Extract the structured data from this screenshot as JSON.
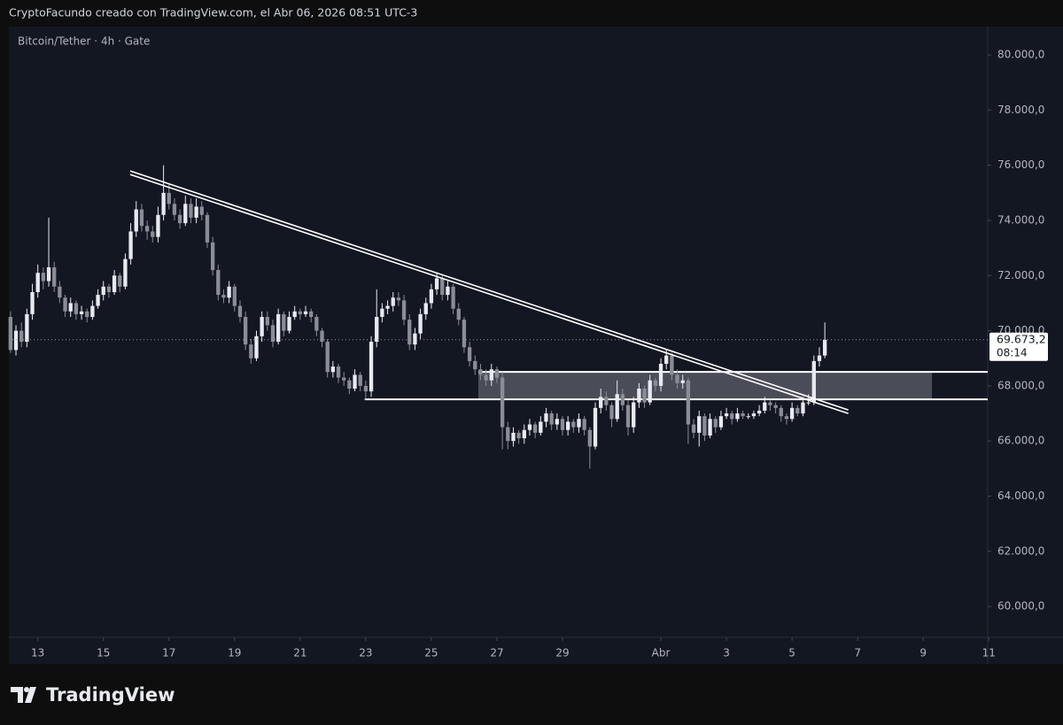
{
  "header": "CryptoFacundo creado con TradingView.com, el Abr 06, 2026 08:51 UTC-3",
  "brand": "TradingView",
  "chart_data": {
    "type": "candlestick",
    "title": "Bitcoin/Tether · 4h · Gate",
    "up_color": "#e8eaf0",
    "down_color": "#8a8d96",
    "xlim": [
      -0.3,
      178.8
    ],
    "ylim": [
      58880,
      81030
    ],
    "xticks": [
      {
        "value": 5,
        "label": "13"
      },
      {
        "value": 17,
        "label": "15"
      },
      {
        "value": 29,
        "label": "17"
      },
      {
        "value": 41,
        "label": "19"
      },
      {
        "value": 53,
        "label": "21"
      },
      {
        "value": 65,
        "label": "23"
      },
      {
        "value": 77,
        "label": "25"
      },
      {
        "value": 89,
        "label": "27"
      },
      {
        "value": 101,
        "label": "29"
      },
      {
        "value": 119,
        "label": "Abr"
      },
      {
        "value": 131,
        "label": "3"
      },
      {
        "value": 143,
        "label": "5"
      },
      {
        "value": 155,
        "label": "7"
      },
      {
        "value": 167,
        "label": "9"
      },
      {
        "value": 179,
        "label": "11"
      }
    ],
    "yticks": [
      {
        "value": 60000,
        "label": "60.000,0"
      },
      {
        "value": 62000,
        "label": "62.000,0"
      },
      {
        "value": 64000,
        "label": "64.000,0"
      },
      {
        "value": 66000,
        "label": "66.000,0"
      },
      {
        "value": 68000,
        "label": "68.000,0"
      },
      {
        "value": 70000,
        "label": "70.000,0"
      },
      {
        "value": 72000,
        "label": "72.000,0"
      },
      {
        "value": 74000,
        "label": "74.000,0"
      },
      {
        "value": 76000,
        "label": "76.000,0"
      },
      {
        "value": 78000,
        "label": "78.000,0"
      },
      {
        "value": 80000,
        "label": "80.000,0"
      }
    ],
    "last_price": {
      "value": 69673.2,
      "label": "69.673,2"
    },
    "countdown": "08:14",
    "trendline": [
      [
        21.9,
        75730
      ],
      [
        153.3,
        67063
      ]
    ],
    "zone": {
      "from": 85.6,
      "to": 168.6,
      "low": 67512,
      "high": 68507
    },
    "support": {
      "from": 64.8,
      "value": 67512
    },
    "candles": [
      [
        70500,
        70700,
        69200,
        69300
      ],
      [
        69300,
        70200,
        69100,
        70000
      ],
      [
        70000,
        70300,
        69400,
        69600
      ],
      [
        69600,
        70800,
        69400,
        70600
      ],
      [
        70600,
        71700,
        70400,
        71400
      ],
      [
        71400,
        72400,
        71200,
        72100
      ],
      [
        72100,
        72300,
        71500,
        71800
      ],
      [
        71800,
        74100,
        71600,
        72300
      ],
      [
        72300,
        72500,
        71400,
        71600
      ],
      [
        71600,
        71800,
        71000,
        71200
      ],
      [
        71200,
        71300,
        70500,
        70700
      ],
      [
        70700,
        71200,
        70500,
        71000
      ],
      [
        71000,
        71100,
        70400,
        70600
      ],
      [
        70600,
        70900,
        70400,
        70700
      ],
      [
        70700,
        70800,
        70300,
        70500
      ],
      [
        70500,
        71100,
        70400,
        70900
      ],
      [
        70900,
        71500,
        70800,
        71300
      ],
      [
        71300,
        71800,
        71100,
        71600
      ],
      [
        71600,
        71700,
        71200,
        71400
      ],
      [
        71400,
        72200,
        71300,
        72000
      ],
      [
        72000,
        72100,
        71400,
        71600
      ],
      [
        71600,
        72800,
        71500,
        72600
      ],
      [
        72600,
        73900,
        72400,
        73600
      ],
      [
        73600,
        74700,
        73400,
        74400
      ],
      [
        74400,
        74600,
        73600,
        73800
      ],
      [
        73800,
        74000,
        73300,
        73600
      ],
      [
        73600,
        73800,
        73200,
        73400
      ],
      [
        73400,
        74500,
        73200,
        74200
      ],
      [
        74200,
        76000,
        74000,
        75000
      ],
      [
        75000,
        75300,
        74400,
        74600
      ],
      [
        74600,
        74800,
        74000,
        74200
      ],
      [
        74200,
        74400,
        73700,
        73900
      ],
      [
        73900,
        74900,
        73800,
        74600
      ],
      [
        74600,
        74800,
        73900,
        74100
      ],
      [
        74100,
        74800,
        73900,
        74500
      ],
      [
        74500,
        74700,
        74000,
        74200
      ],
      [
        74200,
        74300,
        73000,
        73200
      ],
      [
        73200,
        73400,
        72000,
        72200
      ],
      [
        72200,
        72400,
        71100,
        71300
      ],
      [
        71300,
        71500,
        71000,
        71200
      ],
      [
        71200,
        71800,
        71000,
        71600
      ],
      [
        71600,
        71700,
        70700,
        70900
      ],
      [
        70900,
        71100,
        70300,
        70500
      ],
      [
        70500,
        70700,
        69300,
        69500
      ],
      [
        69500,
        69700,
        68800,
        69000
      ],
      [
        69000,
        70000,
        68900,
        69800
      ],
      [
        69800,
        70700,
        69600,
        70500
      ],
      [
        70500,
        70700,
        70000,
        70200
      ],
      [
        70200,
        70400,
        69400,
        69600
      ],
      [
        69600,
        70800,
        69500,
        70600
      ],
      [
        70600,
        70700,
        69800,
        70000
      ],
      [
        70000,
        70700,
        69900,
        70500
      ],
      [
        70500,
        70900,
        70400,
        70700
      ],
      [
        70700,
        70800,
        70400,
        70600
      ],
      [
        70600,
        70900,
        70500,
        70700
      ],
      [
        70700,
        70800,
        70300,
        70500
      ],
      [
        70500,
        70600,
        69800,
        70000
      ],
      [
        70000,
        70100,
        69400,
        69600
      ],
      [
        69600,
        69700,
        68300,
        68500
      ],
      [
        68500,
        68900,
        68300,
        68700
      ],
      [
        68700,
        68800,
        68100,
        68300
      ],
      [
        68300,
        68500,
        68000,
        68200
      ],
      [
        68200,
        68300,
        67700,
        67900
      ],
      [
        67900,
        68600,
        67800,
        68400
      ],
      [
        68400,
        68500,
        67800,
        68000
      ],
      [
        68000,
        68200,
        67500,
        67800
      ],
      [
        67800,
        69800,
        67600,
        69600
      ],
      [
        69600,
        71500,
        69400,
        70500
      ],
      [
        70500,
        71000,
        70300,
        70800
      ],
      [
        70800,
        71100,
        70600,
        70900
      ],
      [
        70900,
        71400,
        70700,
        71200
      ],
      [
        71200,
        71400,
        70900,
        71100
      ],
      [
        71100,
        71300,
        70200,
        70400
      ],
      [
        70400,
        70600,
        69300,
        69500
      ],
      [
        69500,
        70100,
        69300,
        69900
      ],
      [
        69900,
        70800,
        69700,
        70600
      ],
      [
        70600,
        71200,
        70400,
        71000
      ],
      [
        71000,
        71700,
        70800,
        71500
      ],
      [
        71500,
        72100,
        71300,
        71900
      ],
      [
        71900,
        72000,
        71100,
        71300
      ],
      [
        71300,
        71800,
        71100,
        71600
      ],
      [
        71600,
        71700,
        70600,
        70800
      ],
      [
        70800,
        71000,
        70200,
        70400
      ],
      [
        70400,
        70500,
        69200,
        69400
      ],
      [
        69400,
        69600,
        68700,
        68900
      ],
      [
        68900,
        69100,
        68400,
        68600
      ],
      [
        68600,
        68800,
        68200,
        68400
      ],
      [
        68400,
        68600,
        68000,
        68200
      ],
      [
        68200,
        68800,
        68000,
        68600
      ],
      [
        68600,
        68700,
        68100,
        68300
      ],
      [
        68300,
        68500,
        65700,
        66500
      ],
      [
        66500,
        66700,
        65700,
        66000
      ],
      [
        66000,
        66500,
        65800,
        66300
      ],
      [
        66300,
        66400,
        65900,
        66100
      ],
      [
        66100,
        66600,
        65900,
        66400
      ],
      [
        66400,
        66800,
        66200,
        66600
      ],
      [
        66600,
        66700,
        66100,
        66300
      ],
      [
        66300,
        66900,
        66200,
        66700
      ],
      [
        66700,
        67200,
        66500,
        67000
      ],
      [
        67000,
        67100,
        66400,
        66600
      ],
      [
        66600,
        67000,
        66400,
        66800
      ],
      [
        66800,
        66900,
        66200,
        66400
      ],
      [
        66400,
        66900,
        66200,
        66700
      ],
      [
        66700,
        66800,
        66300,
        66500
      ],
      [
        66500,
        67000,
        66300,
        66800
      ],
      [
        66800,
        66900,
        66200,
        66400
      ],
      [
        66400,
        66500,
        65000,
        65800
      ],
      [
        65800,
        67400,
        65700,
        67200
      ],
      [
        67200,
        67900,
        67000,
        67600
      ],
      [
        67600,
        67800,
        67100,
        67300
      ],
      [
        67300,
        67400,
        66500,
        66800
      ],
      [
        66800,
        68200,
        66700,
        67700
      ],
      [
        67700,
        67900,
        67100,
        67300
      ],
      [
        67300,
        67500,
        66200,
        66500
      ],
      [
        66500,
        67600,
        66300,
        67400
      ],
      [
        67400,
        68100,
        67200,
        67900
      ],
      [
        67900,
        68000,
        67200,
        67400
      ],
      [
        67400,
        68400,
        67300,
        68200
      ],
      [
        68200,
        68300,
        67800,
        68000
      ],
      [
        68000,
        69000,
        67800,
        68800
      ],
      [
        68800,
        69300,
        68600,
        69100
      ],
      [
        69100,
        69200,
        68200,
        68400
      ],
      [
        68400,
        68600,
        67900,
        68100
      ],
      [
        68100,
        68400,
        67900,
        68200
      ],
      [
        68200,
        68300,
        65900,
        66600
      ],
      [
        66600,
        66800,
        66100,
        66300
      ],
      [
        66300,
        67100,
        65800,
        66900
      ],
      [
        66900,
        67000,
        66000,
        66200
      ],
      [
        66200,
        67000,
        66100,
        66800
      ],
      [
        66800,
        66900,
        66300,
        66500
      ],
      [
        66500,
        67100,
        66400,
        66900
      ],
      [
        66900,
        67200,
        66800,
        67000
      ],
      [
        67000,
        67100,
        66600,
        66800
      ],
      [
        66800,
        67200,
        66700,
        67000
      ],
      [
        67000,
        67100,
        66800,
        66900
      ],
      [
        66900,
        67000,
        66800,
        66900
      ],
      [
        66900,
        67100,
        66800,
        67000
      ],
      [
        67000,
        67300,
        66900,
        67100
      ],
      [
        67100,
        67600,
        67000,
        67400
      ],
      [
        67400,
        67500,
        67100,
        67300
      ],
      [
        67300,
        67400,
        67000,
        67200
      ],
      [
        67200,
        67300,
        66700,
        66900
      ],
      [
        66900,
        67000,
        66600,
        66800
      ],
      [
        66800,
        67400,
        66700,
        67200
      ],
      [
        67200,
        67300,
        66900,
        67000
      ],
      [
        67000,
        67600,
        66900,
        67400
      ],
      [
        67400,
        67700,
        67300,
        67400
      ],
      [
        67400,
        69100,
        67300,
        68900
      ],
      [
        68900,
        69400,
        68700,
        69100
      ],
      [
        69100,
        70300,
        69000,
        69673.2
      ]
    ]
  }
}
